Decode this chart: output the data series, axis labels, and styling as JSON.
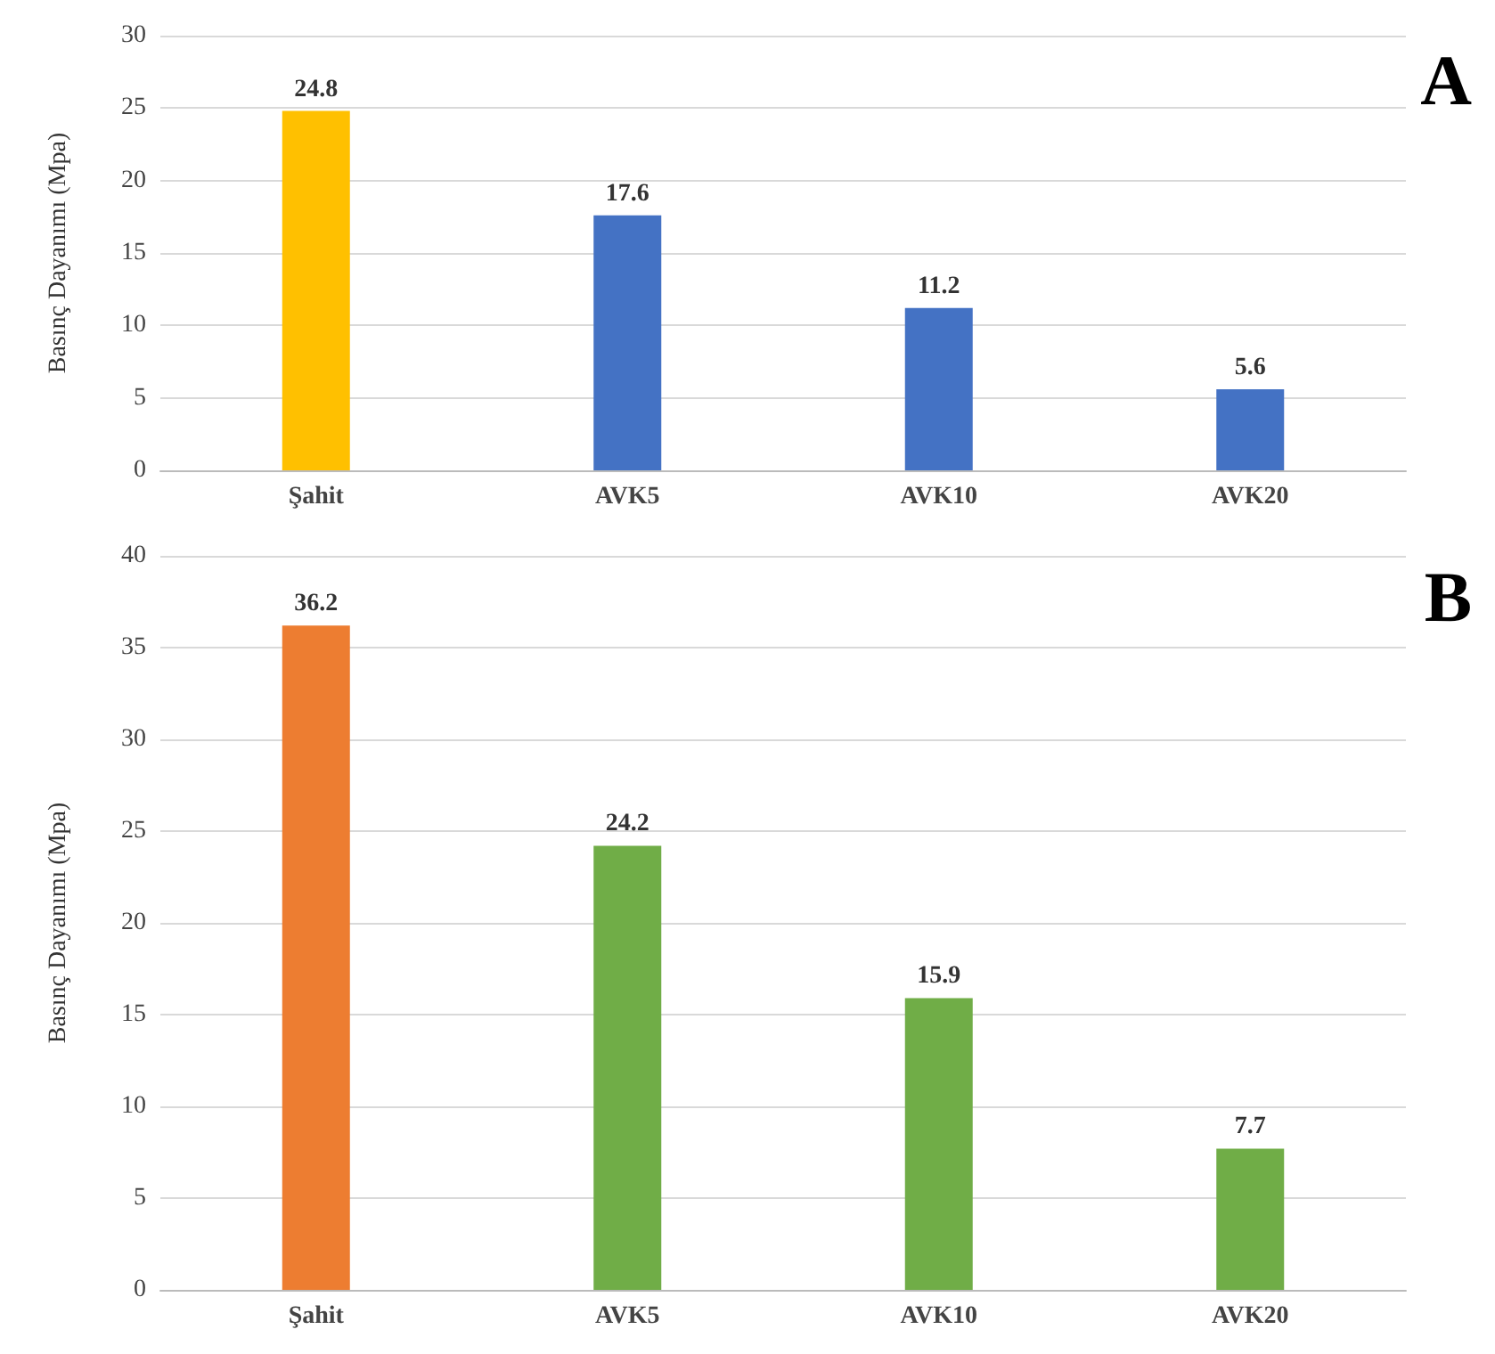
{
  "chart_data": [
    {
      "type": "bar",
      "title": "A",
      "ylabel": "Basınç Dayanımı (Mpa)",
      "categories": [
        "Şahit",
        "AVK5",
        "AVK10",
        "AVK20"
      ],
      "values": [
        24.8,
        17.6,
        11.2,
        5.6
      ],
      "colors": [
        "#ffc000",
        "#4472c4",
        "#4472c4",
        "#4472c4"
      ],
      "ylim": [
        0,
        30
      ],
      "yticks": [
        0,
        5,
        10,
        15,
        20,
        25,
        30
      ],
      "grid": "y",
      "data_labels": true
    },
    {
      "type": "bar",
      "title": "B",
      "ylabel": "Basınç Dayanımı (Mpa)",
      "categories": [
        "Şahit",
        "AVK5",
        "AVK10",
        "AVK20"
      ],
      "values": [
        36.2,
        24.2,
        15.9,
        7.7
      ],
      "colors": [
        "#ed7d31",
        "#70ad47",
        "#70ad47",
        "#70ad47"
      ],
      "ylim": [
        0,
        40
      ],
      "yticks": [
        0,
        5,
        10,
        15,
        20,
        25,
        30,
        35,
        40
      ],
      "grid": "y",
      "data_labels": true
    }
  ]
}
